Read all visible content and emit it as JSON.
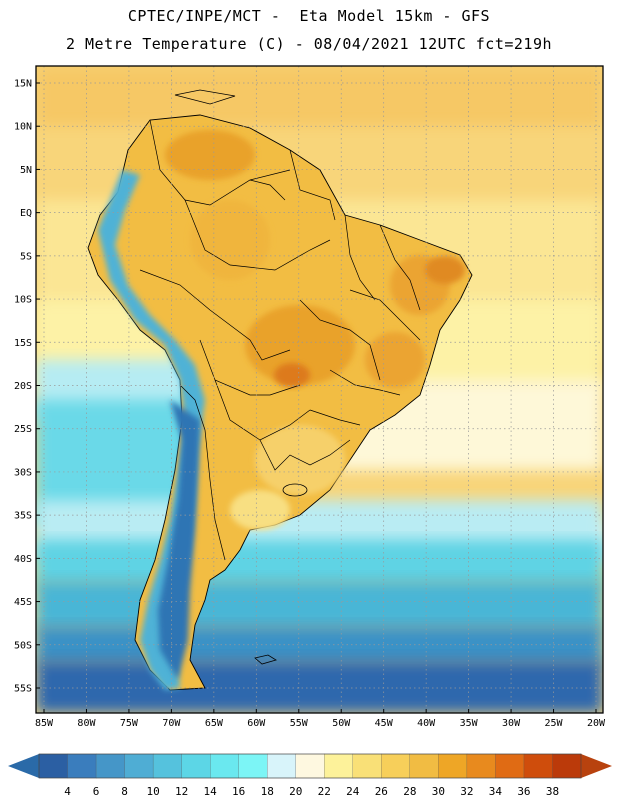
{
  "header": {
    "line1": "CPTEC/INPE/MCT -  Eta Model 15km - GFS",
    "line2": "2 Metre Temperature (C) - 08/04/2021 12UTC fct=219h"
  },
  "map": {
    "lat_ticks": [
      {
        "label": "15N",
        "value": 15
      },
      {
        "label": "10N",
        "value": 10
      },
      {
        "label": "5N",
        "value": 5
      },
      {
        "label": "EQ",
        "value": 0
      },
      {
        "label": "5S",
        "value": -5
      },
      {
        "label": "10S",
        "value": -10
      },
      {
        "label": "15S",
        "value": -15
      },
      {
        "label": "20S",
        "value": -20
      },
      {
        "label": "25S",
        "value": -25
      },
      {
        "label": "30S",
        "value": -30
      },
      {
        "label": "35S",
        "value": -35
      },
      {
        "label": "40S",
        "value": -40
      },
      {
        "label": "45S",
        "value": -45
      },
      {
        "label": "50S",
        "value": -50
      },
      {
        "label": "55S",
        "value": -55
      }
    ],
    "lon_ticks": [
      {
        "label": "85W",
        "value": -85
      },
      {
        "label": "80W",
        "value": -80
      },
      {
        "label": "75W",
        "value": -75
      },
      {
        "label": "70W",
        "value": -70
      },
      {
        "label": "65W",
        "value": -65
      },
      {
        "label": "60W",
        "value": -60
      },
      {
        "label": "55W",
        "value": -55
      },
      {
        "label": "50W",
        "value": -50
      },
      {
        "label": "45W",
        "value": -45
      },
      {
        "label": "40W",
        "value": -40
      },
      {
        "label": "35W",
        "value": -35
      },
      {
        "label": "30W",
        "value": -30
      },
      {
        "label": "25W",
        "value": -25
      },
      {
        "label": "20W",
        "value": -20
      }
    ]
  },
  "colorbar": {
    "labels": [
      "4",
      "6",
      "8",
      "10",
      "12",
      "14",
      "16",
      "18",
      "20",
      "22",
      "24",
      "26",
      "28",
      "30",
      "32",
      "34",
      "36",
      "38"
    ],
    "colors": [
      "#2b5fa3",
      "#3a7dbd",
      "#4596c8",
      "#4fadd4",
      "#55c2dd",
      "#5cd6e6",
      "#6ae8ef",
      "#7cf5f6",
      "#d8f4fa",
      "#fef8e0",
      "#fdf29a",
      "#f9e077",
      "#f7cf5a",
      "#f1bc43",
      "#eea626",
      "#e88a1e",
      "#e06b14",
      "#cf4d0c",
      "#bb3a0a"
    ],
    "low_arrow_color": "#2a6aa8",
    "high_arrow_color": "#b8420e"
  }
}
